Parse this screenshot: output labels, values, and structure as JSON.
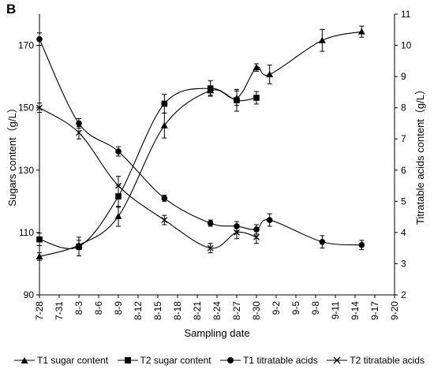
{
  "panel_label": "B",
  "chart_data": {
    "type": "line",
    "xlabel": "Sampling date",
    "ylabel_left": "Sugars content（g/L）",
    "ylabel_right": "Titratable acids content（g/L）",
    "x_tick_labels": [
      "7-28",
      "7-31",
      "8-3",
      "8-6",
      "8-9",
      "8-12",
      "8-15",
      "8-18",
      "8-21",
      "8-24",
      "8-27",
      "8-30",
      "9-2",
      "9-5",
      "9-8",
      "9-11",
      "9-14",
      "9-17",
      "9-20"
    ],
    "ylim_left": [
      90,
      180
    ],
    "yticks_left": [
      90,
      110,
      130,
      150,
      170
    ],
    "ylim_right": [
      2,
      11
    ],
    "yticks_right": [
      2,
      3,
      4,
      5,
      6,
      7,
      8,
      9,
      10,
      11
    ],
    "grid": false,
    "legend_position": "bottom",
    "series": [
      {
        "name": "T1 sugar content",
        "axis": "left",
        "marker": "triangle",
        "x": [
          "7-28",
          "8-3",
          "8-9",
          "8-16",
          "8-23",
          "8-27",
          "8-30",
          "9-1",
          "9-9",
          "9-15"
        ],
        "y": [
          102.3,
          106.0,
          115.2,
          144.3,
          155.5,
          153.1,
          162.9,
          160.7,
          171.6,
          174.4
        ],
        "err": [
          1.2,
          1.5,
          3.2,
          4.0,
          1.5,
          2.3,
          1.2,
          3.0,
          3.5,
          1.8
        ]
      },
      {
        "name": "T2 sugar content",
        "axis": "left",
        "marker": "square",
        "x": [
          "7-28",
          "8-3",
          "8-9",
          "8-16",
          "8-23",
          "8-27",
          "8-30"
        ],
        "y": [
          107.8,
          105.5,
          121.6,
          151.3,
          156.2,
          152.4,
          153.2
        ],
        "err": [
          2.0,
          3.0,
          3.5,
          3.0,
          2.5,
          3.5,
          2.0
        ]
      },
      {
        "name": "T1 titratable acids",
        "axis": "right",
        "marker": "circle",
        "x": [
          "7-28",
          "8-3",
          "8-9",
          "8-16",
          "8-23",
          "8-27",
          "8-30",
          "9-1",
          "9-9",
          "9-15"
        ],
        "y": [
          10.2,
          7.5,
          6.6,
          5.1,
          4.3,
          4.2,
          4.1,
          4.4,
          3.7,
          3.6
        ],
        "err": [
          0.2,
          0.15,
          0.15,
          0.1,
          0.1,
          0.15,
          0.15,
          0.2,
          0.2,
          0.15
        ]
      },
      {
        "name": "T2 titratable acids",
        "axis": "right",
        "marker": "x",
        "x": [
          "7-28",
          "8-3",
          "8-9",
          "8-16",
          "8-23",
          "8-27",
          "8-30"
        ],
        "y": [
          8.0,
          7.2,
          5.5,
          4.4,
          3.5,
          4.0,
          3.85
        ],
        "err": [
          0.15,
          0.2,
          0.3,
          0.15,
          0.15,
          0.2,
          0.2
        ]
      }
    ]
  }
}
